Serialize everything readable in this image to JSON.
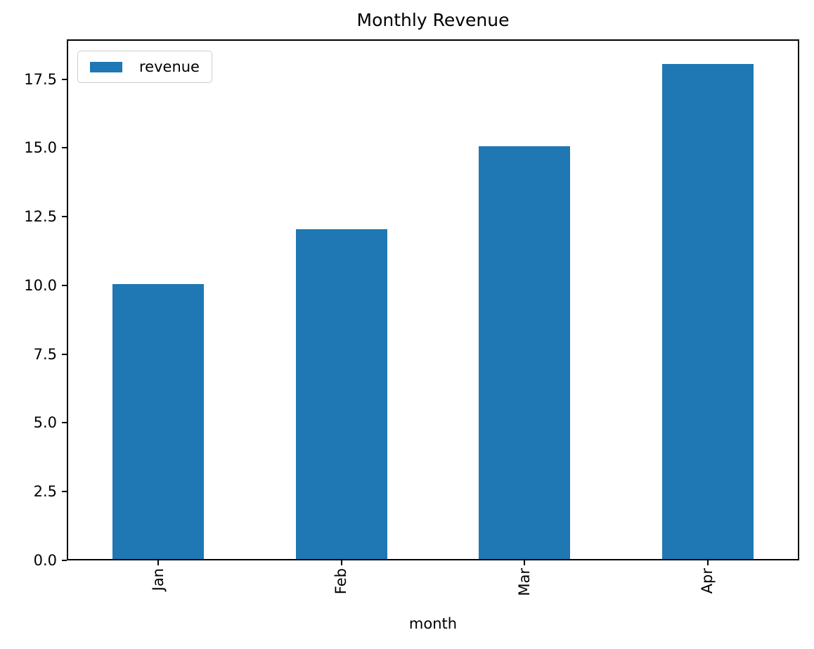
{
  "chart_data": {
    "type": "bar",
    "title": "Monthly Revenue",
    "xlabel": "month",
    "ylabel": "",
    "categories": [
      "Jan",
      "Feb",
      "Mar",
      "Apr"
    ],
    "series": [
      {
        "name": "revenue",
        "values": [
          10,
          12,
          15,
          18
        ]
      }
    ],
    "ylim": [
      0,
      18.95
    ],
    "yticks": [
      0,
      2.5,
      5,
      7.5,
      10,
      12.5,
      15,
      17.5
    ],
    "ytick_labels": [
      "0.0",
      "2.5",
      "5.0",
      "7.5",
      "10.0",
      "12.5",
      "15.0",
      "17.5"
    ],
    "xtick_rotation": 90,
    "bar_color": "#1f77b4",
    "spine_color": "#000000",
    "grid": false,
    "legend": {
      "position": "upper left",
      "entries": [
        "revenue"
      ]
    }
  }
}
